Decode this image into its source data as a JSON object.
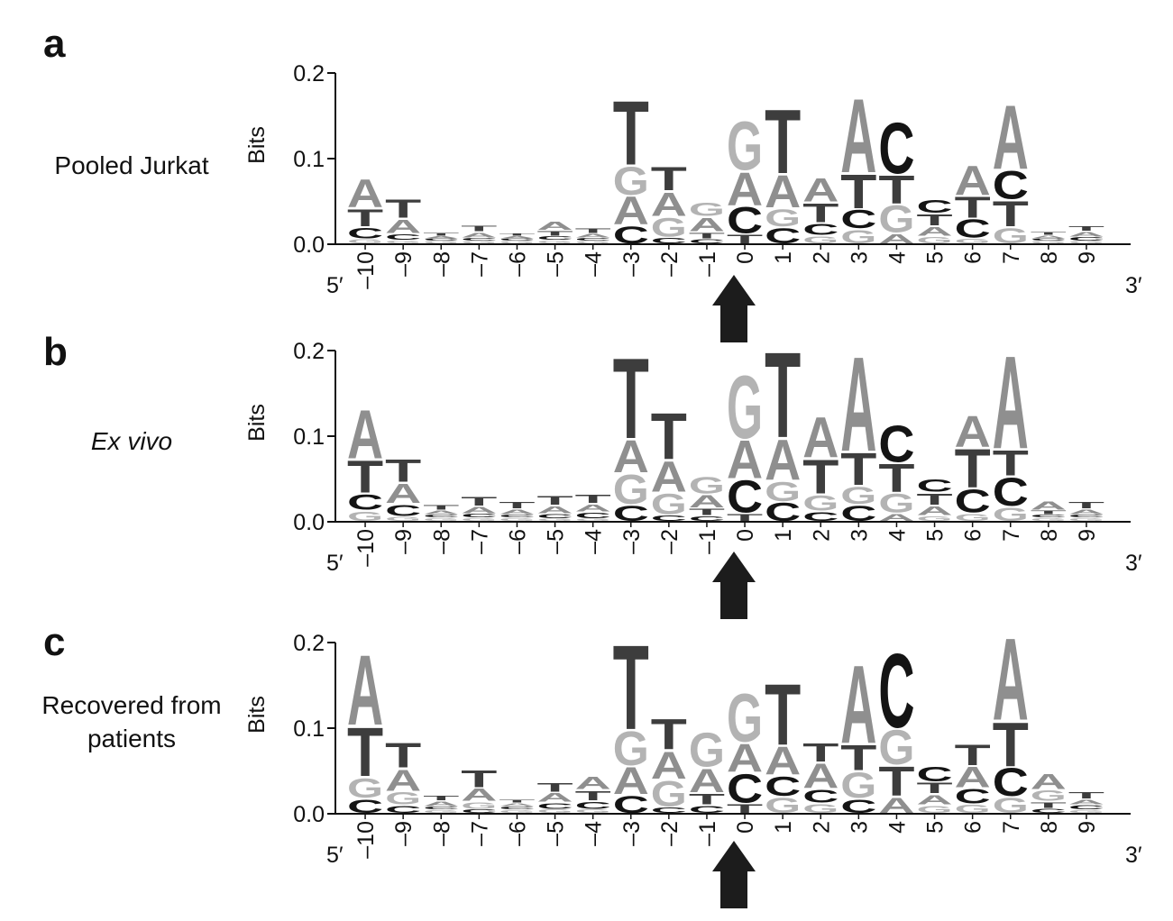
{
  "figure": {
    "colors": {
      "A": "#8f8f8f",
      "C": "#141414",
      "G": "#b3b3b3",
      "T": "#3d3d3d",
      "axis": "#111111",
      "arrow": "#1c1c1c"
    },
    "y_axis_title": "Bits",
    "y_ticks": [
      "0.0",
      "0.1",
      "0.2"
    ],
    "positions": [
      "–10",
      "–9",
      "–8",
      "–7",
      "–6",
      "–5",
      "–4",
      "–3",
      "–2",
      "–1",
      "0",
      "1",
      "2",
      "3",
      "4",
      "5",
      "6",
      "7",
      "8",
      "9"
    ],
    "five_prime": "5′",
    "three_prime": "3′"
  },
  "chart_data": [
    {
      "type": "sequence_logo",
      "panel": "a",
      "label": "Pooled Jurkat",
      "label_italic": false,
      "ylabel": "Bits",
      "ylim": [
        0,
        0.2
      ],
      "positions": [
        -10,
        -9,
        -8,
        -7,
        -6,
        -5,
        -4,
        -3,
        -2,
        -1,
        0,
        1,
        2,
        3,
        4,
        5,
        6,
        7,
        8,
        9
      ],
      "stacks": [
        [
          [
            "G",
            0.006
          ],
          [
            "C",
            0.014
          ],
          [
            "T",
            0.022
          ],
          [
            "A",
            0.035
          ]
        ],
        [
          [
            "G",
            0.004
          ],
          [
            "C",
            0.008
          ],
          [
            "A",
            0.018
          ],
          [
            "T",
            0.023
          ]
        ],
        [
          [
            "G",
            0.003
          ],
          [
            "C",
            0.003
          ],
          [
            "A",
            0.003
          ],
          [
            "T",
            0.004
          ]
        ],
        [
          [
            "G",
            0.003
          ],
          [
            "C",
            0.004
          ],
          [
            "A",
            0.007
          ],
          [
            "T",
            0.008
          ]
        ],
        [
          [
            "G",
            0.003
          ],
          [
            "C",
            0.003
          ],
          [
            "A",
            0.003
          ],
          [
            "T",
            0.003
          ]
        ],
        [
          [
            "G",
            0.004
          ],
          [
            "C",
            0.005
          ],
          [
            "T",
            0.007
          ],
          [
            "A",
            0.011
          ]
        ],
        [
          [
            "G",
            0.003
          ],
          [
            "C",
            0.004
          ],
          [
            "A",
            0.005
          ],
          [
            "T",
            0.007
          ]
        ],
        [
          [
            "C",
            0.022
          ],
          [
            "A",
            0.035
          ],
          [
            "G",
            0.035
          ],
          [
            "T",
            0.078
          ]
        ],
        [
          [
            "C",
            0.008
          ],
          [
            "G",
            0.024
          ],
          [
            "A",
            0.03
          ],
          [
            "T",
            0.03
          ]
        ],
        [
          [
            "C",
            0.006
          ],
          [
            "T",
            0.008
          ],
          [
            "A",
            0.018
          ],
          [
            "G",
            0.018
          ]
        ],
        [
          [
            "T",
            0.012
          ],
          [
            "C",
            0.033
          ],
          [
            "A",
            0.041
          ],
          [
            "G",
            0.06
          ]
        ],
        [
          [
            "C",
            0.02
          ],
          [
            "G",
            0.022
          ],
          [
            "A",
            0.04
          ],
          [
            "T",
            0.078
          ]
        ],
        [
          [
            "G",
            0.01
          ],
          [
            "C",
            0.015
          ],
          [
            "T",
            0.024
          ],
          [
            "A",
            0.03
          ]
        ],
        [
          [
            "G",
            0.018
          ],
          [
            "C",
            0.023
          ],
          [
            "T",
            0.042
          ],
          [
            "A",
            0.09
          ]
        ],
        [
          [
            "A",
            0.013
          ],
          [
            "G",
            0.034
          ],
          [
            "T",
            0.035
          ],
          [
            "C",
            0.063
          ]
        ],
        [
          [
            "G",
            0.009
          ],
          [
            "A",
            0.012
          ],
          [
            "T",
            0.015
          ],
          [
            "C",
            0.017
          ]
        ],
        [
          [
            "G",
            0.007
          ],
          [
            "C",
            0.023
          ],
          [
            "T",
            0.027
          ],
          [
            "A",
            0.037
          ]
        ],
        [
          [
            "G",
            0.02
          ],
          [
            "T",
            0.032
          ],
          [
            "C",
            0.035
          ],
          [
            "A",
            0.078
          ]
        ],
        [
          [
            "G",
            0.003
          ],
          [
            "C",
            0.003
          ],
          [
            "A",
            0.004
          ],
          [
            "T",
            0.004
          ]
        ],
        [
          [
            "G",
            0.003
          ],
          [
            "C",
            0.005
          ],
          [
            "A",
            0.007
          ],
          [
            "T",
            0.007
          ]
        ]
      ]
    },
    {
      "type": "sequence_logo",
      "panel": "b",
      "label": "Ex vivo",
      "label_italic": true,
      "ylabel": "Bits",
      "ylim": [
        0,
        0.2
      ],
      "positions": [
        -10,
        -9,
        -8,
        -7,
        -6,
        -5,
        -4,
        -3,
        -2,
        -1,
        0,
        1,
        2,
        3,
        4,
        5,
        6,
        7,
        8,
        9
      ],
      "stacks": [
        [
          [
            "G",
            0.013
          ],
          [
            "C",
            0.02
          ],
          [
            "T",
            0.04
          ],
          [
            "A",
            0.06
          ]
        ],
        [
          [
            "G",
            0.006
          ],
          [
            "C",
            0.015
          ],
          [
            "A",
            0.025
          ],
          [
            "T",
            0.028
          ]
        ],
        [
          [
            "G",
            0.004
          ],
          [
            "C",
            0.004
          ],
          [
            "A",
            0.005
          ],
          [
            "T",
            0.007
          ]
        ],
        [
          [
            "G",
            0.004
          ],
          [
            "C",
            0.005
          ],
          [
            "A",
            0.009
          ],
          [
            "T",
            0.012
          ]
        ],
        [
          [
            "G",
            0.004
          ],
          [
            "C",
            0.004
          ],
          [
            "A",
            0.007
          ],
          [
            "T",
            0.009
          ]
        ],
        [
          [
            "G",
            0.003
          ],
          [
            "C",
            0.006
          ],
          [
            "A",
            0.01
          ],
          [
            "T",
            0.012
          ]
        ],
        [
          [
            "G",
            0.003
          ],
          [
            "C",
            0.008
          ],
          [
            "A",
            0.01
          ],
          [
            "T",
            0.011
          ]
        ],
        [
          [
            "C",
            0.02
          ],
          [
            "G",
            0.037
          ],
          [
            "A",
            0.04
          ],
          [
            "T",
            0.098
          ]
        ],
        [
          [
            "C",
            0.008
          ],
          [
            "G",
            0.026
          ],
          [
            "A",
            0.038
          ],
          [
            "T",
            0.057
          ]
        ],
        [
          [
            "C",
            0.007
          ],
          [
            "T",
            0.009
          ],
          [
            "A",
            0.016
          ],
          [
            "G",
            0.021
          ]
        ],
        [
          [
            "T",
            0.01
          ],
          [
            "C",
            0.04
          ],
          [
            "A",
            0.047
          ],
          [
            "G",
            0.077
          ]
        ],
        [
          [
            "C",
            0.023
          ],
          [
            "G",
            0.025
          ],
          [
            "A",
            0.05
          ],
          [
            "T",
            0.104
          ]
        ],
        [
          [
            "C",
            0.012
          ],
          [
            "G",
            0.02
          ],
          [
            "T",
            0.042
          ],
          [
            "A",
            0.05
          ]
        ],
        [
          [
            "C",
            0.02
          ],
          [
            "G",
            0.022
          ],
          [
            "T",
            0.04
          ],
          [
            "A",
            0.115
          ]
        ],
        [
          [
            "A",
            0.01
          ],
          [
            "G",
            0.024
          ],
          [
            "T",
            0.035
          ],
          [
            "C",
            0.045
          ]
        ],
        [
          [
            "G",
            0.007
          ],
          [
            "A",
            0.012
          ],
          [
            "T",
            0.015
          ],
          [
            "C",
            0.016
          ]
        ],
        [
          [
            "G",
            0.01
          ],
          [
            "C",
            0.029
          ],
          [
            "T",
            0.048
          ],
          [
            "A",
            0.039
          ]
        ],
        [
          [
            "G",
            0.018
          ],
          [
            "C",
            0.035
          ],
          [
            "T",
            0.032
          ],
          [
            "A",
            0.113
          ]
        ],
        [
          [
            "G",
            0.004
          ],
          [
            "C",
            0.004
          ],
          [
            "T",
            0.005
          ],
          [
            "A",
            0.011
          ]
        ],
        [
          [
            "G",
            0.004
          ],
          [
            "C",
            0.004
          ],
          [
            "A",
            0.007
          ],
          [
            "T",
            0.009
          ]
        ]
      ]
    },
    {
      "type": "sequence_logo",
      "panel": "c",
      "label": "Recovered from patients",
      "label_italic": false,
      "ylabel": "Bits",
      "ylim": [
        0,
        0.2
      ],
      "positions": [
        -10,
        -9,
        -8,
        -7,
        -6,
        -5,
        -4,
        -3,
        -2,
        -1,
        0,
        1,
        2,
        3,
        4,
        5,
        6,
        7,
        8,
        9
      ],
      "stacks": [
        [
          [
            "C",
            0.018
          ],
          [
            "G",
            0.025
          ],
          [
            "T",
            0.06
          ],
          [
            "A",
            0.085
          ]
        ],
        [
          [
            "C",
            0.01
          ],
          [
            "G",
            0.016
          ],
          [
            "A",
            0.027
          ],
          [
            "T",
            0.031
          ]
        ],
        [
          [
            "G",
            0.004
          ],
          [
            "C",
            0.004
          ],
          [
            "A",
            0.007
          ],
          [
            "T",
            0.007
          ]
        ],
        [
          [
            "C",
            0.005
          ],
          [
            "G",
            0.009
          ],
          [
            "A",
            0.016
          ],
          [
            "T",
            0.022
          ]
        ],
        [
          [
            "G",
            0.004
          ],
          [
            "C",
            0.004
          ],
          [
            "A",
            0.004
          ],
          [
            "T",
            0.004
          ]
        ],
        [
          [
            "G",
            0.005
          ],
          [
            "C",
            0.008
          ],
          [
            "A",
            0.012
          ],
          [
            "T",
            0.012
          ]
        ],
        [
          [
            "G",
            0.005
          ],
          [
            "C",
            0.01
          ],
          [
            "T",
            0.013
          ],
          [
            "A",
            0.016
          ]
        ],
        [
          [
            "C",
            0.022
          ],
          [
            "A",
            0.034
          ],
          [
            "G",
            0.042
          ],
          [
            "T",
            0.103
          ]
        ],
        [
          [
            "C",
            0.008
          ],
          [
            "G",
            0.032
          ],
          [
            "A",
            0.034
          ],
          [
            "T",
            0.038
          ]
        ],
        [
          [
            "C",
            0.01
          ],
          [
            "T",
            0.014
          ],
          [
            "A",
            0.03
          ],
          [
            "G",
            0.042
          ]
        ],
        [
          [
            "T",
            0.012
          ],
          [
            "C",
            0.036
          ],
          [
            "A",
            0.035
          ],
          [
            "G",
            0.059
          ]
        ],
        [
          [
            "G",
            0.02
          ],
          [
            "C",
            0.025
          ],
          [
            "A",
            0.035
          ],
          [
            "T",
            0.075
          ]
        ],
        [
          [
            "G",
            0.012
          ],
          [
            "C",
            0.017
          ],
          [
            "A",
            0.031
          ],
          [
            "T",
            0.023
          ]
        ],
        [
          [
            "C",
            0.018
          ],
          [
            "G",
            0.032
          ],
          [
            "T",
            0.032
          ],
          [
            "A",
            0.095
          ]
        ],
        [
          [
            "A",
            0.02
          ],
          [
            "T",
            0.037
          ],
          [
            "G",
            0.043
          ],
          [
            "C",
            0.09
          ]
        ],
        [
          [
            "G",
            0.01
          ],
          [
            "A",
            0.013
          ],
          [
            "T",
            0.014
          ],
          [
            "C",
            0.019
          ]
        ],
        [
          [
            "G",
            0.011
          ],
          [
            "C",
            0.019
          ],
          [
            "A",
            0.026
          ],
          [
            "T",
            0.026
          ]
        ],
        [
          [
            "G",
            0.02
          ],
          [
            "C",
            0.035
          ],
          [
            "T",
            0.054
          ],
          [
            "A",
            0.1
          ]
        ],
        [
          [
            "C",
            0.006
          ],
          [
            "T",
            0.008
          ],
          [
            "G",
            0.014
          ],
          [
            "A",
            0.02
          ]
        ],
        [
          [
            "G",
            0.004
          ],
          [
            "C",
            0.006
          ],
          [
            "A",
            0.007
          ],
          [
            "T",
            0.009
          ]
        ]
      ]
    }
  ]
}
